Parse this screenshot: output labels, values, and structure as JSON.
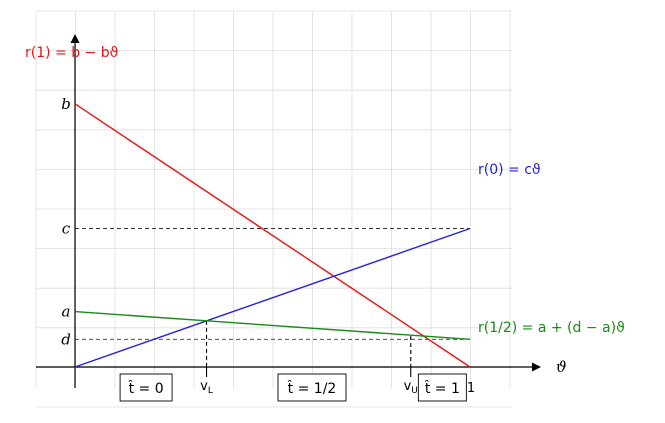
{
  "chart_data": {
    "type": "line",
    "title": "",
    "xlabel": "ϑ",
    "ylabel": "",
    "xlim": [
      -0.1,
      1.1
    ],
    "ylim": [
      -0.08,
      1.1
    ],
    "grid": true,
    "params": {
      "a": 0.2,
      "b": 0.95,
      "c": 0.5,
      "d": 0.1
    },
    "series": [
      {
        "name": "r(1) = b − bϑ",
        "color": "#ee1111",
        "x": [
          0,
          1
        ],
        "y": [
          0.95,
          0
        ]
      },
      {
        "name": "r(0) = cϑ",
        "color": "#2222dd",
        "x": [
          0,
          1
        ],
        "y": [
          0,
          0.5
        ]
      },
      {
        "name": "r(1/2) = a + (d − a)ϑ",
        "color": "#1a8a1a",
        "x": [
          0,
          1
        ],
        "y": [
          0.2,
          0.1
        ]
      }
    ],
    "reference_lines": [
      {
        "label": "c",
        "y": 0.5
      },
      {
        "label": "d",
        "y": 0.1
      }
    ],
    "y_tick_labels": [
      {
        "label": "b",
        "y": 0.95
      },
      {
        "label": "c",
        "y": 0.5
      },
      {
        "label": "a",
        "y": 0.2
      },
      {
        "label": "d",
        "y": 0.1
      }
    ],
    "x_markers": [
      {
        "label": "v_L",
        "main": "v",
        "sub": "L",
        "x": 0.333
      },
      {
        "label": "v_U",
        "main": "v",
        "sub": "U",
        "x": 0.85
      }
    ],
    "x_end_label": "1",
    "regions": [
      {
        "label": "t̂ = 0",
        "x": 0.18
      },
      {
        "label": "t̂ = 1/2",
        "x": 0.6
      },
      {
        "label": "t̂ = 1",
        "x": 0.93
      }
    ]
  }
}
